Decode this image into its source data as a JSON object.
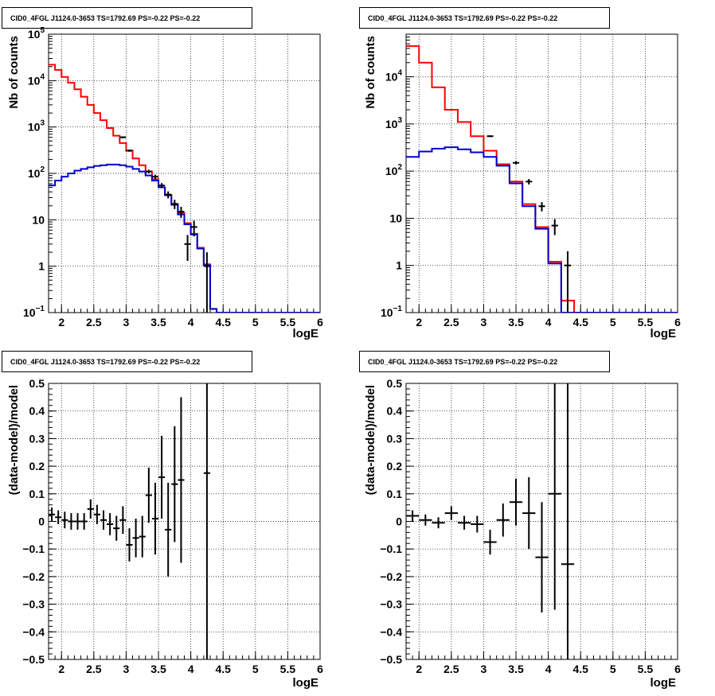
{
  "colors": {
    "data": "#000000",
    "total_model": "#ff0000",
    "source_model": "#0000cc",
    "grid": "#000000"
  },
  "chart_data": [
    {
      "id": "counts-left",
      "type": "line",
      "title": "CID0_4FGL J1124.0-3653 TS=1792.69 PS=-0.22 PS=-0.22",
      "xlabel": "logE",
      "ylabel": "Nb of counts",
      "xlim": [
        1.8,
        6.0
      ],
      "ylim": [
        0.1,
        100000
      ],
      "yscale": "log",
      "grid": true,
      "xticks": [
        "2",
        "2.5",
        "3",
        "3.5",
        "4",
        "4.5",
        "5",
        "5.5",
        "6"
      ],
      "xtick_values": [
        2,
        2.5,
        3,
        3.5,
        4,
        4.5,
        5,
        5.5,
        6
      ],
      "yticks": [
        "10^-1",
        "1",
        "10",
        "10^2",
        "10^3",
        "10^4",
        "10^5"
      ],
      "ytick_labels": [
        {
          "base": "10",
          "exp": "−1"
        },
        {
          "base": "1",
          "exp": ""
        },
        {
          "base": "10",
          "exp": ""
        },
        {
          "base": "10",
          "exp": "2"
        },
        {
          "base": "10",
          "exp": "3"
        },
        {
          "base": "10",
          "exp": "4"
        },
        {
          "base": "10",
          "exp": "5"
        }
      ],
      "ytick_values": [
        0.1,
        1,
        10,
        100,
        1000,
        10000,
        100000
      ],
      "bin_edges": [
        1.8,
        1.9,
        2.0,
        2.1,
        2.2,
        2.3,
        2.4,
        2.5,
        2.6,
        2.7,
        2.8,
        2.9,
        3.0,
        3.1,
        3.2,
        3.3,
        3.4,
        3.5,
        3.6,
        3.7,
        3.8,
        3.9,
        4.0,
        4.1,
        4.2,
        4.3,
        4.4,
        4.5,
        4.6,
        4.7,
        4.8,
        4.9,
        5.0,
        5.1,
        5.2,
        5.3,
        5.4,
        5.5,
        5.6,
        5.7,
        5.8,
        5.9,
        6.0
      ],
      "series": [
        {
          "role": "total_model",
          "style": "step",
          "values": [
            22000,
            17000,
            12000,
            9000,
            6500,
            4500,
            3000,
            2000,
            1400,
            950,
            650,
            450,
            310,
            210,
            150,
            110,
            75,
            50,
            34,
            22,
            14,
            8.5,
            5.0,
            2.5,
            1.1,
            0.12,
            0.1,
            0.1,
            0.1,
            0.1,
            0.1,
            0.1,
            0.1,
            0.1,
            0.1,
            0.1,
            0.1,
            0.1,
            0.1,
            0.1,
            0.1,
            0.1
          ]
        },
        {
          "role": "source_model",
          "style": "step",
          "values": [
            55,
            70,
            85,
            100,
            115,
            125,
            135,
            145,
            150,
            155,
            155,
            150,
            140,
            125,
            110,
            90,
            70,
            50,
            34,
            21,
            13,
            8,
            4.8,
            2.4,
            1.05,
            0.12,
            0.1,
            0.1,
            0.1,
            0.1,
            0.1,
            0.1,
            0.1,
            0.1,
            0.1,
            0.1,
            0.1,
            0.1,
            0.1,
            0.1,
            0.1,
            0.1
          ]
        },
        {
          "role": "data",
          "style": "errorbar",
          "x": [
            2.95,
            3.05,
            3.35,
            3.45,
            3.55,
            3.65,
            3.75,
            3.85,
            3.95,
            4.05,
            4.25
          ],
          "y": [
            600,
            310,
            110,
            85,
            55,
            35,
            22,
            15,
            3,
            7,
            1
          ],
          "yerr": [
            30,
            18,
            10,
            9,
            7,
            6,
            5,
            4,
            1.7,
            2.6,
            1
          ]
        }
      ]
    },
    {
      "id": "counts-right",
      "type": "line",
      "title": "CID0_4FGL J1124.0-3653 TS=1792.69 PS=-0.22 PS=-0.22",
      "xlabel": "logE",
      "ylabel": "Nb of counts",
      "xlim": [
        1.8,
        6.0
      ],
      "ylim": [
        0.1,
        80000
      ],
      "yscale": "log",
      "grid": true,
      "xticks": [
        "2",
        "2.5",
        "3",
        "3.5",
        "4",
        "4.5",
        "5",
        "5.5",
        "6"
      ],
      "xtick_values": [
        2,
        2.5,
        3,
        3.5,
        4,
        4.5,
        5,
        5.5,
        6
      ],
      "yticks": [
        "10^-1",
        "1",
        "10",
        "10^2",
        "10^3",
        "10^4"
      ],
      "ytick_labels": [
        {
          "base": "10",
          "exp": "−1"
        },
        {
          "base": "1",
          "exp": ""
        },
        {
          "base": "10",
          "exp": ""
        },
        {
          "base": "10",
          "exp": "2"
        },
        {
          "base": "10",
          "exp": "3"
        },
        {
          "base": "10",
          "exp": "4"
        }
      ],
      "ytick_values": [
        0.1,
        1,
        10,
        100,
        1000,
        10000
      ],
      "bin_edges": [
        1.8,
        2.0,
        2.2,
        2.4,
        2.6,
        2.8,
        3.0,
        3.2,
        3.4,
        3.6,
        3.8,
        4.0,
        4.2,
        4.4,
        4.6,
        4.8,
        5.0,
        5.2,
        5.4,
        5.6,
        5.8,
        6.0
      ],
      "series": [
        {
          "role": "total_model",
          "style": "step",
          "values": [
            45000,
            20000,
            6000,
            2000,
            1100,
            550,
            270,
            140,
            60,
            20,
            6.5,
            1.2,
            0.18,
            0.1,
            0.1,
            0.1,
            0.1,
            0.1,
            0.1,
            0.1,
            0.1
          ]
        },
        {
          "role": "source_model",
          "style": "step",
          "values": [
            200,
            260,
            300,
            320,
            290,
            250,
            200,
            130,
            55,
            18,
            6,
            1.1,
            0.1,
            0.1,
            0.1,
            0.1,
            0.1,
            0.1,
            0.1,
            0.1,
            0.1
          ]
        },
        {
          "role": "data",
          "style": "errorbar",
          "x": [
            3.1,
            3.5,
            3.7,
            3.9,
            4.1,
            4.3
          ],
          "y": [
            550,
            150,
            60,
            18,
            7,
            1
          ],
          "yerr": [
            24,
            12,
            8,
            4,
            2.6,
            1
          ]
        }
      ]
    },
    {
      "id": "residuals-left",
      "type": "scatter",
      "title": "CID0_4FGL J1124.0-3653 TS=1792.69 PS=-0.22 PS=-0.22",
      "xlabel": "logE",
      "ylabel": "(data-model)/model",
      "xlim": [
        1.8,
        6.0
      ],
      "ylim": [
        -0.5,
        0.5
      ],
      "grid": true,
      "xticks": [
        "2",
        "2.5",
        "3",
        "3.5",
        "4",
        "4.5",
        "5",
        "5.5",
        "6"
      ],
      "xtick_values": [
        2,
        2.5,
        3,
        3.5,
        4,
        4.5,
        5,
        5.5,
        6
      ],
      "yticks": [
        "−0.5",
        "−0.4",
        "−0.3",
        "−0.2",
        "−0.1",
        "0",
        "0.1",
        "0.2",
        "0.3",
        "0.4",
        "0.5"
      ],
      "ytick_values": [
        -0.5,
        -0.4,
        -0.3,
        -0.2,
        -0.1,
        0,
        0.1,
        0.2,
        0.3,
        0.4,
        0.5
      ],
      "series": [
        {
          "role": "data",
          "style": "errorbar",
          "xerr": 0.05,
          "x": [
            1.85,
            1.95,
            2.05,
            2.15,
            2.25,
            2.35,
            2.45,
            2.55,
            2.65,
            2.75,
            2.85,
            2.95,
            3.05,
            3.15,
            3.25,
            3.35,
            3.45,
            3.55,
            3.65,
            3.75,
            3.85,
            4.25
          ],
          "y": [
            0.025,
            0.015,
            0.005,
            0.0,
            0.0,
            0.0,
            0.045,
            0.025,
            0.005,
            -0.01,
            -0.025,
            0.005,
            -0.085,
            -0.06,
            -0.055,
            0.095,
            0.01,
            0.16,
            -0.03,
            0.135,
            0.15,
            0.175
          ],
          "yerr": [
            0.025,
            0.025,
            0.03,
            0.03,
            0.03,
            0.03,
            0.035,
            0.035,
            0.035,
            0.04,
            0.045,
            0.05,
            0.06,
            0.07,
            0.075,
            0.1,
            0.13,
            0.15,
            0.17,
            0.21,
            0.3,
            1.0
          ]
        }
      ]
    },
    {
      "id": "residuals-right",
      "type": "scatter",
      "title": "CID0_4FGL J1124.0-3653 TS=1792.69 PS=-0.22 PS=-0.22",
      "xlabel": "logE",
      "ylabel": "(data-model)/model",
      "xlim": [
        1.8,
        6.0
      ],
      "ylim": [
        -0.5,
        0.5
      ],
      "grid": true,
      "xticks": [
        "2",
        "2.5",
        "3",
        "3.5",
        "4",
        "4.5",
        "5",
        "5.5",
        "6"
      ],
      "xtick_values": [
        2,
        2.5,
        3,
        3.5,
        4,
        4.5,
        5,
        5.5,
        6
      ],
      "yticks": [
        "−0.5",
        "−0.4",
        "−0.3",
        "−0.2",
        "−0.1",
        "0",
        "0.1",
        "0.2",
        "0.3",
        "0.4",
        "0.5"
      ],
      "ytick_values": [
        -0.5,
        -0.4,
        -0.3,
        -0.2,
        -0.1,
        0,
        0.1,
        0.2,
        0.3,
        0.4,
        0.5
      ],
      "series": [
        {
          "role": "data",
          "style": "errorbar",
          "xerr": 0.1,
          "x": [
            1.9,
            2.1,
            2.3,
            2.5,
            2.7,
            2.9,
            3.1,
            3.3,
            3.5,
            3.7,
            3.9,
            4.1,
            4.3
          ],
          "y": [
            0.02,
            0.005,
            -0.005,
            0.03,
            -0.005,
            -0.01,
            -0.075,
            0.005,
            0.07,
            0.03,
            -0.13,
            0.1,
            -0.155
          ],
          "yerr": [
            0.02,
            0.02,
            0.02,
            0.025,
            0.025,
            0.03,
            0.045,
            0.06,
            0.085,
            0.13,
            0.2,
            0.42,
            1.0
          ]
        }
      ]
    }
  ]
}
